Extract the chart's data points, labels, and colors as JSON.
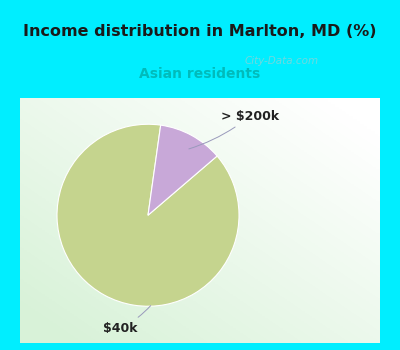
{
  "title": "Income distribution in Marlton, MD (%)",
  "subtitle": "Asian residents",
  "title_color": "#1a1a1a",
  "subtitle_color": "#00bbbb",
  "background_cyan": "#00eeff",
  "slices": [
    {
      "label": "$40k",
      "value": 88.5,
      "color": "#c5d48e"
    },
    {
      "label": "> $200k",
      "value": 11.5,
      "color": "#c8a8d8"
    }
  ],
  "watermark": "City-Data.com",
  "startangle": 82,
  "panel_bg_left": "#d4edda",
  "panel_bg_right": "#f8fffa"
}
